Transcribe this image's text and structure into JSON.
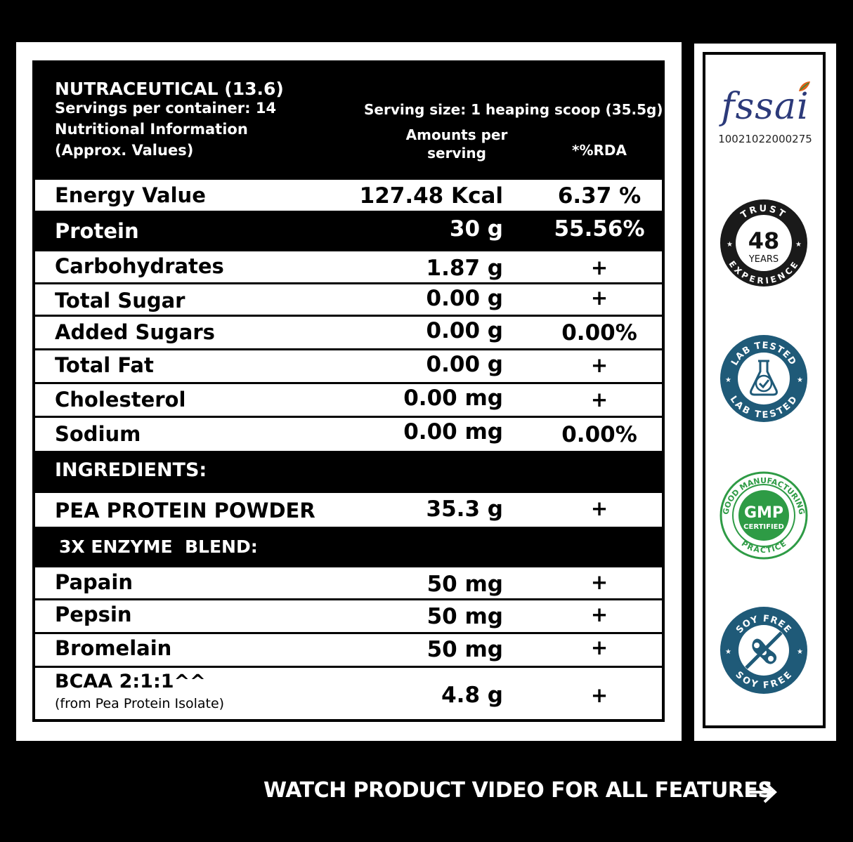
{
  "header": {
    "title": "NUTRACEUTICAL (13.6)",
    "servings_per_container": "Servings per container: 14",
    "nutritional_info": "Nutritional Information",
    "approx_values": "(Approx. Values)",
    "serving_size": "Serving size: 1 heaping scoop (35.5g)",
    "amounts_per_line1": "Amounts per",
    "amounts_per_line2": "serving",
    "rda_header": "*%RDA"
  },
  "nutrients": [
    {
      "label": "Energy Value",
      "amount": "127.48 Kcal",
      "rda": "6.37 %"
    },
    {
      "label": "Protein",
      "amount": "30 g",
      "rda": "55.56%"
    },
    {
      "label": "Carbohydrates",
      "amount": "1.87 g",
      "rda": "+"
    },
    {
      "label": "Total Sugar",
      "amount": "0.00 g",
      "rda": "+"
    },
    {
      "label": "Added Sugars",
      "amount": "0.00 g",
      "rda": "0.00%"
    },
    {
      "label": "Total Fat",
      "amount": "0.00 g",
      "rda": "+"
    },
    {
      "label": "Cholesterol",
      "amount": "0.00 mg",
      "rda": "+"
    },
    {
      "label": "Sodium",
      "amount": "0.00 mg",
      "rda": "0.00%"
    }
  ],
  "ingredients": {
    "heading": "INGREDIENTS:",
    "main": {
      "label": "PEA PROTEIN POWDER",
      "amount": "35.3 g",
      "rda": "+"
    },
    "blend_heading": "3X ENZYME  BLEND:",
    "blend": [
      {
        "label": "Papain",
        "amount": "50 mg",
        "rda": "+"
      },
      {
        "label": "Pepsin",
        "amount": "50 mg",
        "rda": "+"
      },
      {
        "label": "Bromelain",
        "amount": "50 mg",
        "rda": "+"
      }
    ],
    "bcaa": {
      "label": "BCAA 2:1:1^^",
      "sub": "(from Pea Protein Isolate)",
      "amount": "4.8 g",
      "rda": "+"
    }
  },
  "badges": {
    "fssai_logo": "fssai",
    "fssai_number": "10021022000275",
    "trust_top": "TRUST",
    "trust_number": "48",
    "trust_years": "YEARS",
    "trust_bottom": "EXPERIENCE",
    "lab_top": "LAB TESTED",
    "lab_bottom": "LAB TESTED",
    "gmp_main": "GMP",
    "gmp_certified": "CERTIFIED",
    "gmp_ring_top": "GOOD MANUFACTURING",
    "gmp_ring_bottom": "PRACTICE",
    "soy_top": "SOY FREE",
    "soy_bottom": "SOY FREE"
  },
  "footer": {
    "cta": "WATCH PRODUCT VIDEO FOR ALL FEATURES"
  },
  "colors": {
    "background": "#000000",
    "fssai_blue": "#2c3a7a",
    "fssai_accent": "#e0601a",
    "lab_blue": "#1f5a78",
    "gmp_green": "#2e9b45",
    "soy_blue": "#1f5a78"
  },
  "icons": [
    "arrow-right-icon",
    "flask-check-icon",
    "soybean-crossed-icon"
  ]
}
